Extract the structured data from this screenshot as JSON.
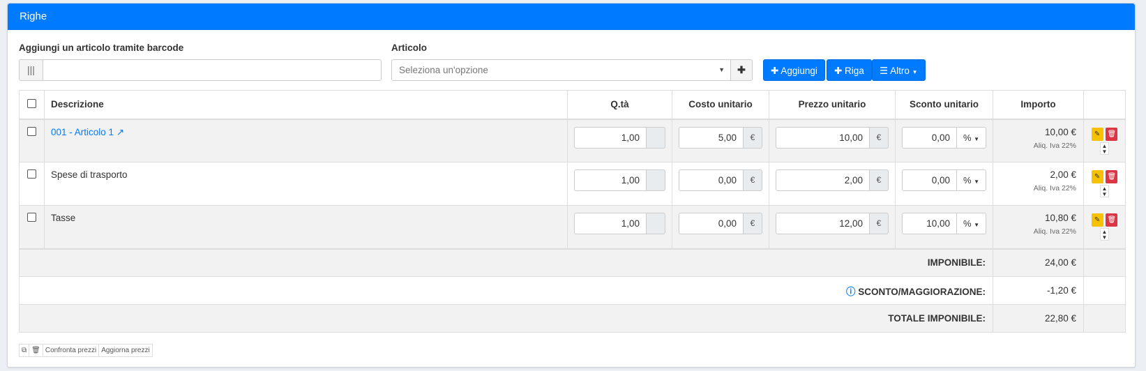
{
  "panel": {
    "title": "Righe"
  },
  "barcode": {
    "label": "Aggiungi un articolo tramite barcode",
    "value": ""
  },
  "articolo": {
    "label": "Articolo",
    "placeholder": "Seleziona un'opzione"
  },
  "buttons": {
    "aggiungi": "✚ Aggiungi",
    "riga": "✚ Riga",
    "altro": "☰ Altro"
  },
  "accent": "#007bff",
  "table": {
    "headers": [
      "Descrizione",
      "Q.tà",
      "Costo unitario",
      "Prezzo unitario",
      "Sconto unitario",
      "Importo"
    ],
    "rows": [
      {
        "descrizione": "001 - Articolo 1",
        "link": true,
        "qta": "1,00",
        "costo": "5,00",
        "prezzo": "10,00",
        "sconto": "0,00",
        "sconto_tipo": "%",
        "importo": "10,00 €",
        "aliquota": "Aliq. Iva 22%"
      },
      {
        "descrizione": "Spese di trasporto",
        "qta": "1,00",
        "costo": "0,00",
        "prezzo": "2,00",
        "sconto": "0,00",
        "sconto_tipo": "%",
        "importo": "2,00 €",
        "aliquota": "Aliq. Iva 22%"
      },
      {
        "descrizione": "Tasse",
        "qta": "1,00",
        "costo": "0,00",
        "prezzo": "12,00",
        "sconto": "10,00",
        "sconto_tipo": "%",
        "importo": "10,80 €",
        "aliquota": "Aliq. Iva 22%"
      }
    ],
    "currency": "€",
    "totals": [
      {
        "label": "IMPONIBILE:",
        "value": "24,00 €"
      },
      {
        "label": "SCONTO/MAGGIORAZIONE:",
        "value": "-1,20 €"
      },
      {
        "label": "TOTALE IMPONIBILE:",
        "value": "22,80 €"
      }
    ]
  },
  "footer": {
    "confronta": "Confronta prezzi",
    "aggiorna": "Aggiorna prezzi"
  }
}
